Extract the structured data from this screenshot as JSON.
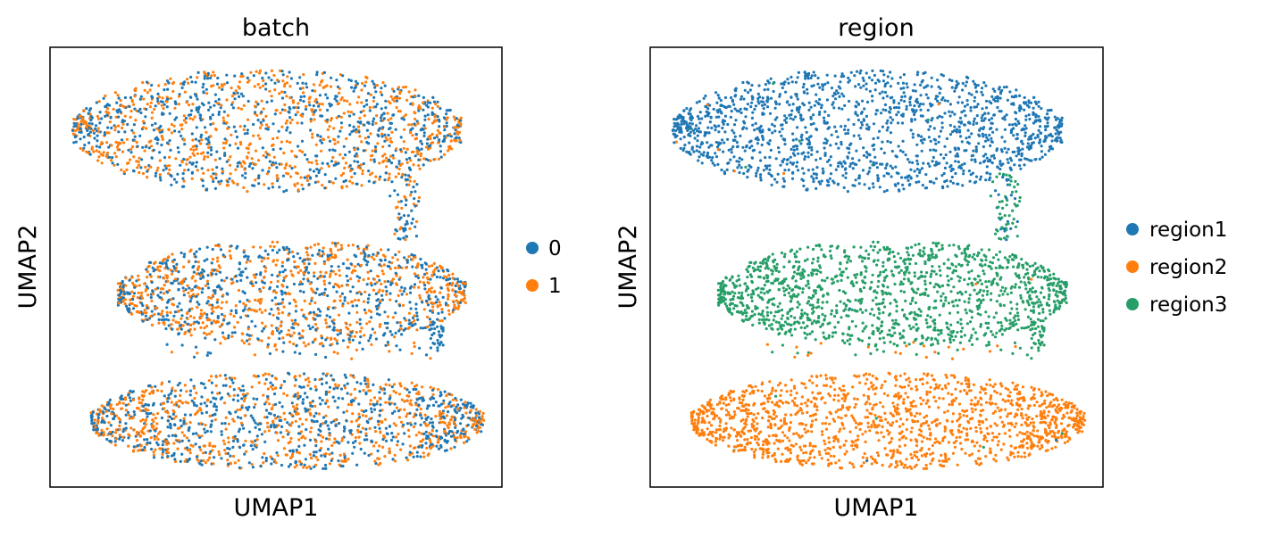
{
  "chart_data": [
    {
      "type": "scatter",
      "title": "batch",
      "xlabel": "UMAP1",
      "ylabel": "UMAP2",
      "xlim": [
        0,
        100
      ],
      "ylim": [
        0,
        100
      ],
      "grid": false,
      "legend": "right",
      "series": [
        {
          "name": "0",
          "color": "#1f77b4"
        },
        {
          "name": "1",
          "color": "#ff7f0e"
        }
      ]
    },
    {
      "type": "scatter",
      "title": "region",
      "xlabel": "UMAP1",
      "ylabel": "UMAP2",
      "xlim": [
        0,
        100
      ],
      "ylim": [
        0,
        100
      ],
      "grid": false,
      "legend": "right",
      "series": [
        {
          "name": "region1",
          "color": "#1f77b4"
        },
        {
          "name": "region2",
          "color": "#ff7f0e"
        },
        {
          "name": "region3",
          "color": "#279e68"
        }
      ]
    }
  ],
  "clusters": [
    {
      "name": "top",
      "x_range": [
        5,
        91
      ],
      "y_center": 81,
      "y_halfheight": 14
    },
    {
      "name": "middle",
      "x_range": [
        15,
        92
      ],
      "y_center": 44,
      "y_halfheight": 12
    },
    {
      "name": "bottom",
      "x_range": [
        9,
        96
      ],
      "y_center": 15,
      "y_halfheight": 11
    }
  ]
}
